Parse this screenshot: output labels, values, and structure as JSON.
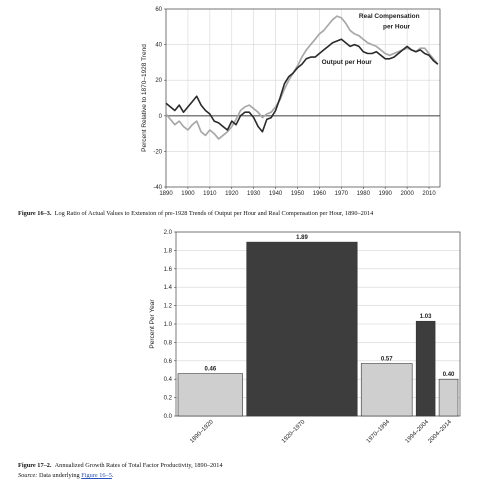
{
  "chart_data": [
    {
      "type": "line",
      "ylabel": "Percent Relative to 1870–1928 Trend",
      "xlim": [
        1890,
        2015
      ],
      "ylim": [
        -40,
        60
      ],
      "xticks": [
        1890,
        1900,
        1910,
        1920,
        1930,
        1940,
        1950,
        1960,
        1970,
        1980,
        1990,
        2000,
        2010
      ],
      "yticks": [
        -40,
        -20,
        0,
        20,
        40,
        60
      ],
      "colors": {
        "output": "#2a2a2a",
        "compensation": "#a8a8a8",
        "zero": "#555555"
      },
      "series": [
        {
          "name": "Output per Hour",
          "x": [
            1890,
            1892,
            1894,
            1896,
            1898,
            1900,
            1902,
            1904,
            1906,
            1908,
            1910,
            1912,
            1914,
            1916,
            1918,
            1920,
            1922,
            1924,
            1926,
            1928,
            1930,
            1932,
            1934,
            1936,
            1938,
            1940,
            1942,
            1944,
            1946,
            1948,
            1950,
            1952,
            1954,
            1956,
            1958,
            1960,
            1962,
            1964,
            1966,
            1968,
            1970,
            1972,
            1974,
            1976,
            1978,
            1980,
            1982,
            1984,
            1986,
            1988,
            1990,
            1992,
            1994,
            1996,
            1998,
            2000,
            2002,
            2004,
            2006,
            2008,
            2010,
            2012,
            2014
          ],
          "y": [
            7,
            5,
            3,
            6,
            2,
            5,
            8,
            11,
            6,
            3,
            1,
            -3,
            -4,
            -6,
            -8,
            -3,
            -5,
            0,
            2,
            2,
            -1,
            -6,
            -9,
            -2,
            -1,
            3,
            10,
            18,
            22,
            24,
            27,
            29,
            32,
            33,
            33,
            35,
            37,
            39,
            41,
            42,
            43,
            41,
            39,
            40,
            39,
            36,
            35,
            35,
            36,
            34,
            32,
            32,
            33,
            35,
            37,
            39,
            37,
            36,
            37,
            35,
            34,
            31,
            29
          ]
        },
        {
          "name": "Real Compensation per Hour",
          "x": [
            1890,
            1892,
            1894,
            1896,
            1898,
            1900,
            1902,
            1904,
            1906,
            1908,
            1910,
            1912,
            1914,
            1916,
            1918,
            1920,
            1922,
            1924,
            1926,
            1928,
            1930,
            1932,
            1934,
            1936,
            1938,
            1940,
            1942,
            1944,
            1946,
            1948,
            1950,
            1952,
            1954,
            1956,
            1958,
            1960,
            1962,
            1964,
            1966,
            1968,
            1970,
            1972,
            1974,
            1976,
            1978,
            1980,
            1982,
            1984,
            1986,
            1988,
            1990,
            1992,
            1994,
            1996,
            1998,
            2000,
            2002,
            2004,
            2006,
            2008,
            2010,
            2012,
            2014
          ],
          "y": [
            1,
            -2,
            -5,
            -3,
            -6,
            -8,
            -5,
            -3,
            -9,
            -11,
            -8,
            -10,
            -13,
            -11,
            -9,
            -6,
            -2,
            3,
            5,
            6,
            4,
            2,
            -1,
            1,
            2,
            5,
            9,
            15,
            20,
            24,
            28,
            33,
            37,
            40,
            43,
            46,
            48,
            51,
            54,
            56,
            55,
            52,
            48,
            46,
            45,
            43,
            41,
            40,
            39,
            37,
            35,
            34,
            35,
            36,
            37,
            38,
            37,
            36,
            38,
            38,
            35,
            32,
            29
          ]
        }
      ]
    },
    {
      "type": "bar",
      "ylabel": "Percent Per Year",
      "ylim": [
        0,
        2.0
      ],
      "yticks": [
        "0.0",
        "0.2",
        "0.4",
        "0.6",
        "0.8",
        "1.0",
        "1.2",
        "1.4",
        "1.6",
        "1.8",
        "2.0"
      ],
      "categories": [
        "1890–1920",
        "1920–1970",
        "1970–1994",
        "1994–2004",
        "2004–2014"
      ],
      "values": [
        0.46,
        1.89,
        0.57,
        1.03,
        0.4
      ],
      "value_labels": [
        "0.46",
        "1.89",
        "0.57",
        "1.03",
        "0.40"
      ],
      "colors": [
        "#cfcfcf",
        "#3d3d3d",
        "#cfcfcf",
        "#3d3d3d",
        "#cfcfcf"
      ]
    }
  ],
  "annotations": {
    "compensation_label_line1": "Real Compensation",
    "compensation_label_line2": "per Hour",
    "output_label": "Output per Hour"
  },
  "captions": {
    "fig1_number": "Figure 16–3.",
    "fig1_text": "Log Ratio of Actual Values to Extension of pre-1928 Trends of Output per Hour and Real Compensation per Hour, 1890–2014",
    "fig2_number": "Figure 17–2.",
    "fig2_text": "Annualized Growth Rates of Total Factor Productivity, 1890–2014",
    "source_label": "Source:",
    "source_text": "Data underlying",
    "source_link": "Figure 16–5",
    "source_end": "."
  }
}
